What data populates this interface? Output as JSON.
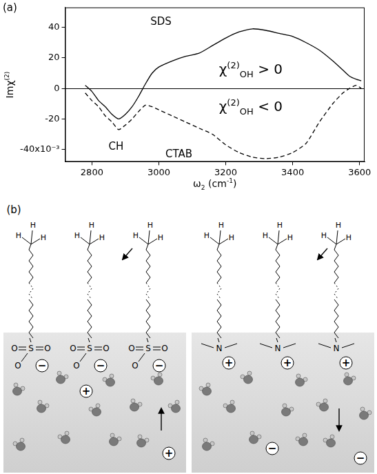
{
  "panels": [
    "(a)",
    "(b)"
  ],
  "chart_data": {
    "type": "line",
    "x_label": [
      {
        "text": "ω",
        "style": "normal"
      },
      {
        "text": "2",
        "style": "sub"
      },
      {
        "text": " (cm",
        "style": "normal"
      },
      {
        "text": "-1",
        "style": "sup"
      },
      {
        "text": ")",
        "style": "normal"
      }
    ],
    "y_label": [
      {
        "text": "Imχ",
        "style": "normal"
      },
      {
        "text": "(2)",
        "style": "sup"
      }
    ],
    "x": [
      2780,
      2800,
      2820,
      2840,
      2860,
      2880,
      2900,
      2920,
      2940,
      2960,
      2980,
      3000,
      3040,
      3080,
      3120,
      3160,
      3200,
      3240,
      3280,
      3320,
      3360,
      3400,
      3440,
      3480,
      3520,
      3550,
      3570,
      3590,
      3605
    ],
    "series": [
      {
        "name": "SDS",
        "color": "#000000",
        "line_style": "solid",
        "values": [
          2,
          -2,
          -8,
          -12,
          -17,
          -20,
          -17,
          -12,
          -5,
          3,
          10,
          14,
          18,
          21,
          23,
          28,
          33,
          37,
          39,
          38,
          36,
          34,
          30,
          25,
          18,
          12,
          8,
          6,
          5
        ]
      },
      {
        "name": "CTAB",
        "color": "#000000",
        "line_style": "dashed",
        "values": [
          -3,
          -8,
          -12,
          -18,
          -22,
          -27,
          -24,
          -20,
          -15,
          -11,
          -12,
          -14,
          -18,
          -22,
          -26,
          -30,
          -37,
          -42,
          -45,
          -46,
          -45,
          -42,
          -36,
          -22,
          -10,
          -3,
          0,
          2,
          0
        ]
      }
    ],
    "xlim": [
      2720,
      3615
    ],
    "xticks": [
      2800,
      3000,
      3200,
      3400,
      3600
    ],
    "ylim": [
      -48,
      53
    ],
    "yticks": [
      {
        "value": -40,
        "label": "-40x10⁻³"
      },
      -20,
      0,
      20,
      40
    ],
    "grid": false,
    "annotations": [
      [
        {
          "text": "CH",
          "style": "normal"
        }
      ],
      [
        {
          "text": "χ",
          "style": "normal"
        },
        {
          "text": "(2)",
          "style": "sup"
        },
        {
          "text": "OH",
          "style": "sub"
        },
        {
          "text": " > 0",
          "style": "normal"
        }
      ],
      [
        {
          "text": "χ",
          "style": "normal"
        },
        {
          "text": "(2)",
          "style": "sup"
        },
        {
          "text": "OH",
          "style": "sub"
        },
        {
          "text": " < 0",
          "style": "normal"
        }
      ]
    ]
  },
  "diagram": {
    "panel": "(b)",
    "symbols": {
      "hydrogen": "H",
      "sulfur": "S",
      "oxygen": "O",
      "nitrogen": "N"
    },
    "charges": {
      "positive": "+",
      "negative": "−"
    }
  }
}
